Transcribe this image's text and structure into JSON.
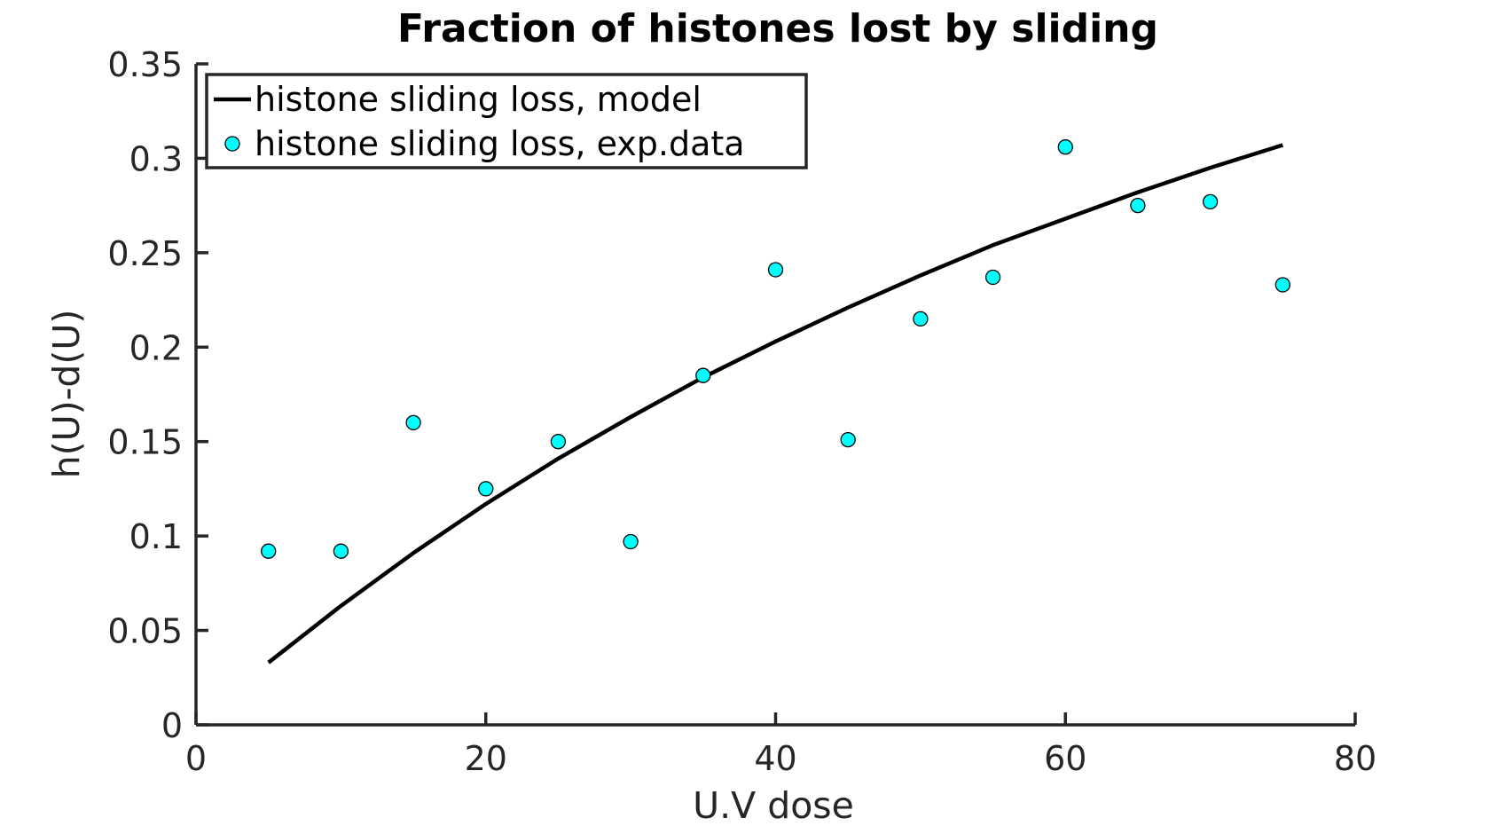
{
  "chart_data": {
    "type": "scatter",
    "title": "Fraction of histones lost by sliding",
    "xlabel": "U.V dose",
    "ylabel": "h(U)-d(U)",
    "xlim": [
      0,
      80
    ],
    "ylim": [
      0,
      0.35
    ],
    "xticks": [
      0,
      20,
      40,
      60,
      80
    ],
    "xtick_labels": [
      "0",
      "20",
      "40",
      "60",
      "80"
    ],
    "yticks": [
      0,
      0.05,
      0.1,
      0.15,
      0.2,
      0.25,
      0.3,
      0.35
    ],
    "ytick_labels": [
      "0",
      "0.05",
      "0.1",
      "0.15",
      "0.2",
      "0.25",
      "0.3",
      "0.35"
    ],
    "grid": false,
    "legend_position": "top-left",
    "series": [
      {
        "name": "histone sliding loss, model",
        "kind": "line",
        "color": "#000000",
        "x": [
          5,
          10,
          15,
          20,
          25,
          30,
          35,
          40,
          45,
          50,
          55,
          60,
          65,
          70,
          75
        ],
        "y": [
          0.033,
          0.063,
          0.091,
          0.117,
          0.141,
          0.163,
          0.184,
          0.203,
          0.221,
          0.238,
          0.254,
          0.268,
          0.282,
          0.295,
          0.307
        ]
      },
      {
        "name": "histone sliding loss, exp.data",
        "kind": "scatter",
        "color": "#00ffff",
        "edge_color": "#000000",
        "x": [
          5,
          10,
          15,
          20,
          25,
          30,
          35,
          40,
          45,
          50,
          55,
          60,
          65,
          70,
          75
        ],
        "y": [
          0.092,
          0.092,
          0.16,
          0.125,
          0.15,
          0.097,
          0.185,
          0.241,
          0.151,
          0.215,
          0.237,
          0.306,
          0.275,
          0.277,
          0.233
        ]
      }
    ]
  }
}
